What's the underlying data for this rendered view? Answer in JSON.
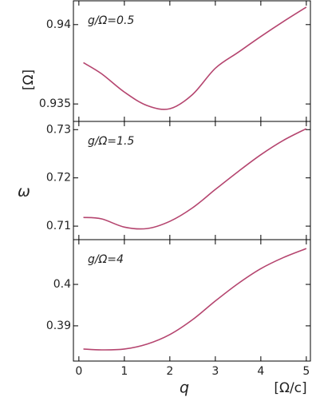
{
  "ylabel": "ω",
  "yunit": "[Ω]",
  "xlabel": "q",
  "xunit": "[Ω/c]",
  "chart_data": [
    {
      "type": "line",
      "annotation": "g/Ω=0.5",
      "color": "#b5456f",
      "x": [
        0.1,
        0.5,
        1.0,
        1.5,
        2.0,
        2.5,
        3.0,
        3.5,
        4.0,
        4.5,
        5.0
      ],
      "values": [
        0.9376,
        0.9369,
        0.93575,
        0.9349,
        0.9347,
        0.9356,
        0.93725,
        0.93825,
        0.93925,
        0.9402,
        0.9411
      ],
      "xlim": [
        -0.12,
        5.09
      ],
      "xticks": [
        0,
        1,
        2,
        3,
        4,
        5
      ],
      "ylim": [
        0.9339,
        0.9415
      ],
      "yticks": [
        0.935,
        0.94
      ]
    },
    {
      "type": "line",
      "annotation": "g/Ω=1.5",
      "color": "#b5456f",
      "x": [
        0.1,
        0.5,
        1.0,
        1.5,
        2.0,
        2.5,
        3.0,
        3.5,
        4.0,
        4.5,
        5.0
      ],
      "values": [
        0.7118,
        0.7115,
        0.7098,
        0.7095,
        0.711,
        0.7138,
        0.7176,
        0.7213,
        0.7248,
        0.7278,
        0.7302
      ],
      "xlim": [
        -0.12,
        5.09
      ],
      "xticks": [
        0,
        1,
        2,
        3,
        4,
        5
      ],
      "ylim": [
        0.7072,
        0.7317
      ],
      "yticks": [
        0.71,
        0.72,
        0.73
      ]
    },
    {
      "type": "line",
      "annotation": "g/Ω=4",
      "color": "#b5456f",
      "x": [
        0.1,
        0.5,
        1.0,
        1.5,
        2.0,
        2.5,
        3.0,
        3.5,
        4.0,
        4.5,
        5.0
      ],
      "values": [
        0.3844,
        0.3842,
        0.3844,
        0.3856,
        0.3879,
        0.3915,
        0.396,
        0.4002,
        0.4038,
        0.4065,
        0.40865
      ],
      "xlim": [
        -0.12,
        5.09
      ],
      "xticks": [
        0,
        1,
        2,
        3,
        4,
        5
      ],
      "ylim": [
        0.3815,
        0.4108
      ],
      "yticks": [
        0.39,
        0.4
      ]
    }
  ]
}
